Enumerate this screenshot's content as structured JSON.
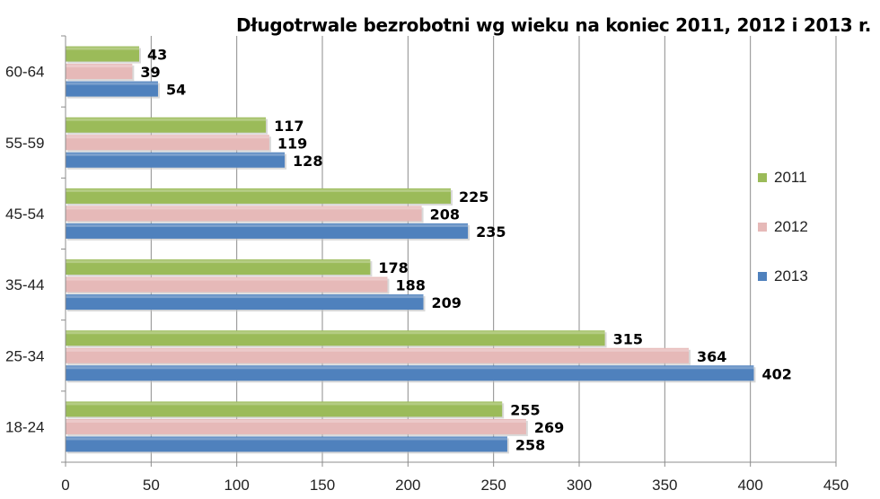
{
  "chart_data": {
    "type": "bar",
    "orientation": "horizontal",
    "title": "Długotrwale bezrobotni wg wieku na koniec 2011, 2012 i 2013 r.",
    "xlabel": "",
    "ylabel": "",
    "xlim": [
      0,
      450
    ],
    "x_ticks": [
      "0",
      "50",
      "100",
      "150",
      "200",
      "250",
      "300",
      "350",
      "400",
      "450"
    ],
    "categories": [
      "18-24",
      "25-34",
      "35-44",
      "45-54",
      "55-59",
      "60-64"
    ],
    "series": [
      {
        "name": "2011",
        "color": "#9bbb59",
        "values": [
          255,
          315,
          178,
          225,
          117,
          43
        ]
      },
      {
        "name": "2012",
        "color": "#e6b9b8",
        "values": [
          269,
          364,
          188,
          208,
          119,
          39
        ]
      },
      {
        "name": "2013",
        "color": "#4f81bd",
        "values": [
          258,
          402,
          209,
          235,
          128,
          54
        ]
      }
    ],
    "grid": true,
    "legend_position": "right",
    "data_labels": true
  }
}
